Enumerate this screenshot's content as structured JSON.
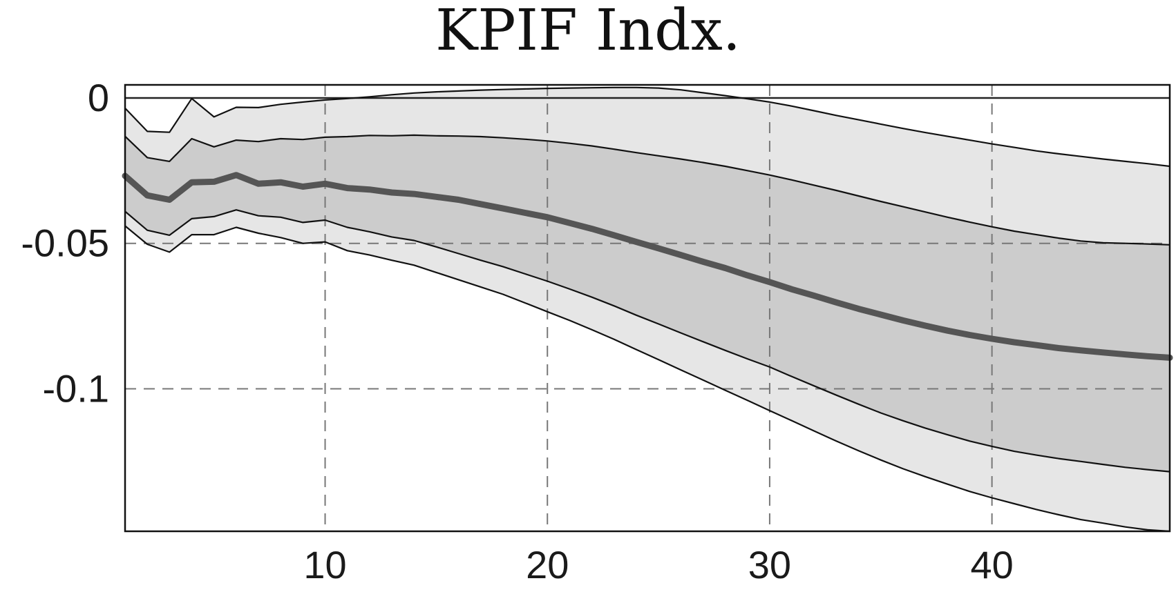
{
  "chart_data": {
    "type": "area",
    "title": "KPIF Indx.",
    "xlabel": "",
    "ylabel": "",
    "xlim": [
      1,
      48
    ],
    "ylim": [
      -0.149,
      0.0045
    ],
    "xticks": [
      10,
      20,
      30,
      40
    ],
    "xtick_labels": [
      "10",
      "20",
      "30",
      "40"
    ],
    "yticks": [
      0,
      -0.05,
      -0.1
    ],
    "ytick_labels": [
      "0",
      "-0.05",
      "-0.1"
    ],
    "grid": true,
    "zero_line": true,
    "legend": "none",
    "colors": {
      "outer_band": "#e6e6e6",
      "inner_band": "#cccccc",
      "median": "#555555",
      "band_edge": "#111111",
      "grid": "#777777"
    },
    "x": [
      1,
      2,
      3,
      4,
      5,
      6,
      7,
      8,
      9,
      10,
      11,
      12,
      13,
      14,
      15,
      16,
      17,
      18,
      19,
      20,
      21,
      22,
      23,
      24,
      25,
      26,
      27,
      28,
      29,
      30,
      31,
      32,
      33,
      34,
      35,
      36,
      37,
      38,
      39,
      40,
      41,
      42,
      43,
      44,
      45,
      46,
      47,
      48
    ],
    "series": [
      {
        "role": "outer_upper",
        "values": [
          -0.0035,
          -0.0115,
          -0.0118,
          -0.0002,
          -0.0065,
          -0.0032,
          -0.0033,
          -0.0022,
          -0.0014,
          -0.0007,
          -0.0002,
          0.0004,
          0.0011,
          0.0017,
          0.0021,
          0.0024,
          0.0027,
          0.0029,
          0.0031,
          0.0033,
          0.0034,
          0.0035,
          0.0036,
          0.0036,
          0.0034,
          0.0028,
          0.0018,
          0.0008,
          -0.0003,
          -0.0014,
          -0.0028,
          -0.0044,
          -0.006,
          -0.0075,
          -0.009,
          -0.0105,
          -0.0119,
          -0.0132,
          -0.0145,
          -0.0158,
          -0.017,
          -0.0182,
          -0.0192,
          -0.0201,
          -0.021,
          -0.0218,
          -0.0226,
          -0.0235
        ]
      },
      {
        "role": "inner_upper",
        "values": [
          -0.0132,
          -0.0205,
          -0.0218,
          -0.014,
          -0.0168,
          -0.0145,
          -0.015,
          -0.014,
          -0.0143,
          -0.0135,
          -0.0133,
          -0.0129,
          -0.013,
          -0.0128,
          -0.013,
          -0.0131,
          -0.0133,
          -0.0137,
          -0.0142,
          -0.0148,
          -0.0156,
          -0.0165,
          -0.0176,
          -0.0188,
          -0.0199,
          -0.021,
          -0.0222,
          -0.0235,
          -0.025,
          -0.0265,
          -0.0282,
          -0.03,
          -0.0318,
          -0.0337,
          -0.0356,
          -0.0374,
          -0.0392,
          -0.041,
          -0.0427,
          -0.0443,
          -0.0458,
          -0.047,
          -0.0482,
          -0.0492,
          -0.0498,
          -0.05,
          -0.0502,
          -0.0505
        ]
      },
      {
        "role": "median",
        "values": [
          -0.0268,
          -0.0335,
          -0.035,
          -0.029,
          -0.0288,
          -0.0265,
          -0.0295,
          -0.029,
          -0.0305,
          -0.0295,
          -0.031,
          -0.0315,
          -0.0325,
          -0.033,
          -0.034,
          -0.035,
          -0.0365,
          -0.038,
          -0.0395,
          -0.041,
          -0.043,
          -0.045,
          -0.0472,
          -0.0495,
          -0.0517,
          -0.054,
          -0.0563,
          -0.0585,
          -0.061,
          -0.0633,
          -0.0658,
          -0.068,
          -0.0703,
          -0.0725,
          -0.0745,
          -0.0765,
          -0.0783,
          -0.08,
          -0.0815,
          -0.0828,
          -0.084,
          -0.085,
          -0.086,
          -0.0868,
          -0.0875,
          -0.0882,
          -0.0888,
          -0.0893
        ]
      },
      {
        "role": "inner_lower",
        "values": [
          -0.039,
          -0.0455,
          -0.0472,
          -0.0415,
          -0.0408,
          -0.0385,
          -0.0405,
          -0.041,
          -0.0428,
          -0.042,
          -0.0445,
          -0.046,
          -0.0478,
          -0.049,
          -0.0512,
          -0.0535,
          -0.0558,
          -0.058,
          -0.0605,
          -0.063,
          -0.0657,
          -0.0685,
          -0.0715,
          -0.0747,
          -0.0777,
          -0.0808,
          -0.0838,
          -0.0868,
          -0.0897,
          -0.0925,
          -0.0958,
          -0.099,
          -0.1022,
          -0.1053,
          -0.1083,
          -0.111,
          -0.1135,
          -0.1158,
          -0.118,
          -0.1198,
          -0.1215,
          -0.1228,
          -0.124,
          -0.125,
          -0.126,
          -0.127,
          -0.1278,
          -0.1285
        ]
      },
      {
        "role": "outer_lower",
        "values": [
          -0.044,
          -0.0503,
          -0.053,
          -0.047,
          -0.047,
          -0.0445,
          -0.0465,
          -0.048,
          -0.05,
          -0.0495,
          -0.0525,
          -0.054,
          -0.0558,
          -0.0575,
          -0.06,
          -0.0625,
          -0.065,
          -0.0675,
          -0.0705,
          -0.0735,
          -0.0765,
          -0.0797,
          -0.083,
          -0.0865,
          -0.09,
          -0.0935,
          -0.097,
          -0.1005,
          -0.104,
          -0.1075,
          -0.111,
          -0.1145,
          -0.118,
          -0.1213,
          -0.1245,
          -0.1275,
          -0.1302,
          -0.1328,
          -0.1353,
          -0.1375,
          -0.1395,
          -0.1415,
          -0.1433,
          -0.145,
          -0.1462,
          -0.1475,
          -0.1485,
          -0.149
        ]
      }
    ]
  }
}
